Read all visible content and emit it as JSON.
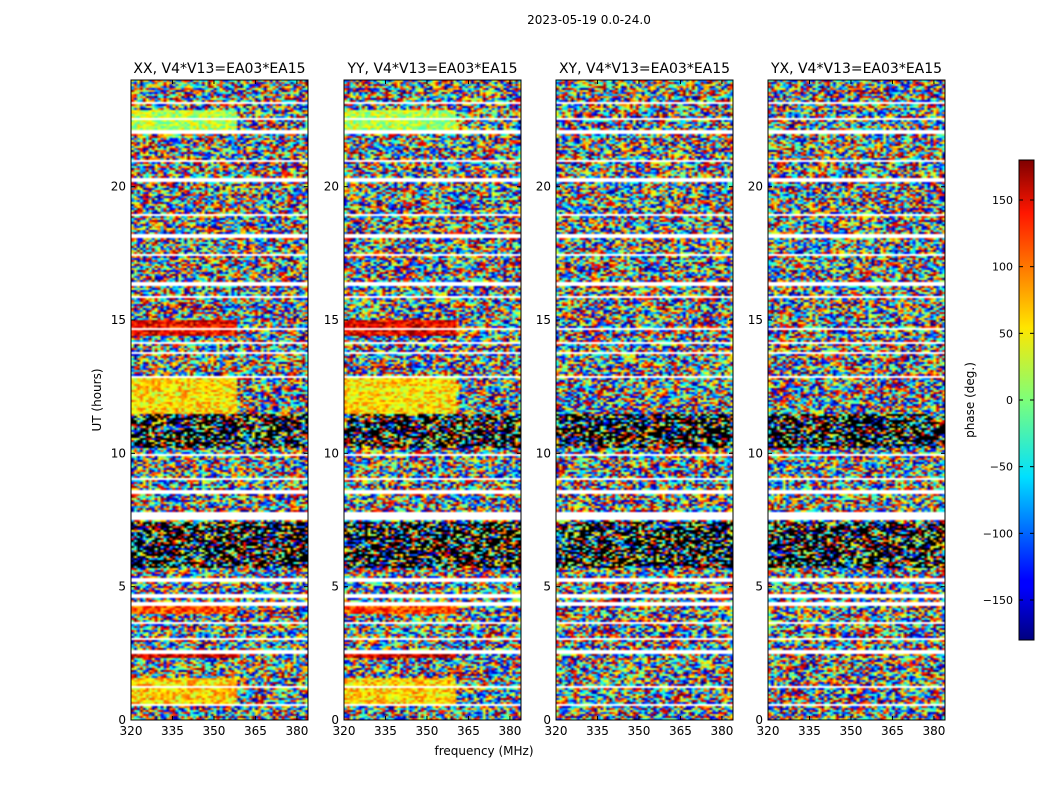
{
  "figure": {
    "suptitle": "2023-05-19 0.0-24.0"
  },
  "chart_data": {
    "type": "heatmap",
    "title": "2023-05-19 0.0-24.0",
    "xlabel": "frequency (MHz)",
    "ylabel": "UT (hours)",
    "xlim": [
      320,
      384
    ],
    "ylim": [
      0,
      24
    ],
    "x_ticks": [
      320,
      335,
      350,
      365,
      380
    ],
    "y_ticks": [
      0,
      5,
      10,
      15,
      20
    ],
    "panels": [
      {
        "title": "XX, V4*V13=EA03*EA15"
      },
      {
        "title": "YY, V4*V13=EA03*EA15"
      },
      {
        "title": "XY, V4*V13=EA03*EA15"
      },
      {
        "title": "YX, V4*V13=EA03*EA15"
      }
    ],
    "colorbar": {
      "label": "phase (deg.)",
      "range": [
        -180,
        180
      ],
      "ticks": [
        -150,
        -100,
        -50,
        0,
        50,
        100,
        150
      ],
      "colormap": "jet"
    },
    "flagged_bands_hours": [
      [
        0.5,
        0.6
      ],
      [
        1.2,
        1.3
      ],
      [
        1.7,
        1.75
      ],
      [
        2.5,
        2.6
      ],
      [
        3.0,
        3.1
      ],
      [
        3.6,
        3.65
      ],
      [
        4.3,
        4.4
      ],
      [
        4.6,
        4.7
      ],
      [
        5.2,
        5.3
      ],
      [
        7.5,
        7.8
      ],
      [
        8.5,
        8.6
      ],
      [
        9.0,
        9.05
      ],
      [
        9.9,
        10.0
      ],
      [
        12.8,
        12.9
      ],
      [
        13.7,
        13.8
      ],
      [
        14.1,
        14.2
      ],
      [
        14.6,
        14.7
      ],
      [
        15.8,
        15.9
      ],
      [
        16.3,
        16.4
      ],
      [
        17.4,
        17.5
      ],
      [
        18.1,
        18.2
      ],
      [
        18.9,
        19.0
      ],
      [
        20.2,
        20.3
      ],
      [
        20.9,
        21.0
      ],
      [
        22.0,
        22.1
      ],
      [
        22.5,
        22.6
      ],
      [
        23.1,
        23.2
      ]
    ],
    "dense_bands_hours": [
      [
        5.7,
        7.4
      ],
      [
        10.2,
        11.5
      ]
    ],
    "coherent_bands": [
      {
        "pols": [
          "XX",
          "YY"
        ],
        "hours": [
          0.6,
          1.6
        ],
        "phase": 60
      },
      {
        "pols": [
          "XX",
          "YY"
        ],
        "hours": [
          2.3,
          2.5
        ],
        "phase": 150
      },
      {
        "pols": [
          "XX",
          "YY"
        ],
        "hours": [
          4.0,
          4.25
        ],
        "phase": 110
      },
      {
        "pols": [
          "XX",
          "YY"
        ],
        "hours": [
          11.5,
          12.8
        ],
        "phase": 55
      },
      {
        "pols": [
          "XX",
          "YY"
        ],
        "hours": [
          14.4,
          15.0
        ],
        "phase": 140
      },
      {
        "pols": [
          "XX",
          "YY"
        ],
        "hours": [
          22.1,
          22.9
        ],
        "phase": 20
      }
    ]
  }
}
